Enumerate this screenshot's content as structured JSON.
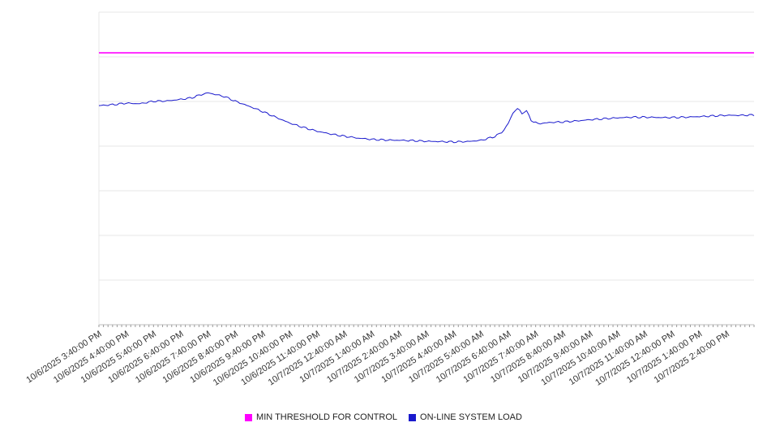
{
  "chart_data": {
    "type": "line",
    "title": "",
    "xlabel": "",
    "ylabel": "",
    "ylim": [
      0,
      100
    ],
    "grid": "horizontal",
    "grid_divisions": 7,
    "legend_position": "bottom-center",
    "x_hours_span": 24,
    "x_labels": [
      "10/6/2025 3:40:00 PM",
      "10/6/2025 4:40:00 PM",
      "10/6/2025 5:40:00 PM",
      "10/6/2025 6:40:00 PM",
      "10/6/2025 7:40:00 PM",
      "10/6/2025 8:40:00 PM",
      "10/6/2025 9:40:00 PM",
      "10/6/2025 10:40:00 PM",
      "10/6/2025 11:40:00 PM",
      "10/7/2025 12:40:00 AM",
      "10/7/2025 1:40:00 AM",
      "10/7/2025 2:40:00 AM",
      "10/7/2025 3:40:00 AM",
      "10/7/2025 4:40:00 AM",
      "10/7/2025 5:40:00 AM",
      "10/7/2025 6:40:00 AM",
      "10/7/2025 7:40:00 AM",
      "10/7/2025 8:40:00 AM",
      "10/7/2025 9:40:00 AM",
      "10/7/2025 10:40:00 AM",
      "10/7/2025 11:40:00 AM",
      "10/7/2025 12:40:00 PM",
      "10/7/2025 1:40:00 PM",
      "10/7/2025 2:40:00 PM"
    ],
    "series": [
      {
        "name": "MIN THRESHOLD FOR CONTROL",
        "type": "threshold",
        "color": "#ff00ff",
        "value": 87
      },
      {
        "name": "ON-LINE SYSTEM LOAD",
        "type": "line",
        "color": "#1a1acd",
        "points": [
          [
            0,
            70.1
          ],
          [
            0.5,
            70.4
          ],
          [
            1,
            70.9
          ],
          [
            1.5,
            70.7
          ],
          [
            2,
            71.5
          ],
          [
            2.5,
            71.6
          ],
          [
            3,
            72.1
          ],
          [
            3.4,
            72.6
          ],
          [
            3.7,
            73.5
          ],
          [
            4,
            74.2
          ],
          [
            4.3,
            73.6
          ],
          [
            4.6,
            73.0
          ],
          [
            5,
            71.5
          ],
          [
            5.5,
            69.9
          ],
          [
            6,
            68.2
          ],
          [
            6.5,
            66.3
          ],
          [
            7,
            64.5
          ],
          [
            7.5,
            63.1
          ],
          [
            8,
            61.9
          ],
          [
            8.5,
            61.0
          ],
          [
            9,
            60.3
          ],
          [
            9.5,
            59.7
          ],
          [
            10,
            59.3
          ],
          [
            10.5,
            59.1
          ],
          [
            11,
            59.0
          ],
          [
            11.5,
            58.9
          ],
          [
            12,
            58.7
          ],
          [
            12.5,
            58.6
          ],
          [
            13,
            58.5
          ],
          [
            13.5,
            58.6
          ],
          [
            14,
            59.0
          ],
          [
            14.5,
            60.2
          ],
          [
            14.8,
            61.8
          ],
          [
            15,
            64.5
          ],
          [
            15.2,
            68.3
          ],
          [
            15.35,
            69.2
          ],
          [
            15.5,
            67.6
          ],
          [
            15.65,
            68.6
          ],
          [
            15.85,
            65.2
          ],
          [
            16.1,
            64.3
          ],
          [
            16.5,
            64.7
          ],
          [
            17,
            64.9
          ],
          [
            17.5,
            65.2
          ],
          [
            18,
            65.6
          ],
          [
            18.5,
            65.9
          ],
          [
            19,
            66.2
          ],
          [
            19.5,
            66.4
          ],
          [
            20,
            66.4
          ],
          [
            20.5,
            66.3
          ],
          [
            21,
            66.3
          ],
          [
            21.5,
            66.4
          ],
          [
            22,
            66.6
          ],
          [
            22.5,
            66.8
          ],
          [
            23,
            67.0
          ],
          [
            23.5,
            67.0
          ],
          [
            24,
            67.1
          ]
        ]
      }
    ]
  },
  "colors": {
    "gridline": "#e7e7e7",
    "axis_line": "#bdbdbd",
    "tick": "#9a9a9a",
    "label_text": "#333333"
  }
}
